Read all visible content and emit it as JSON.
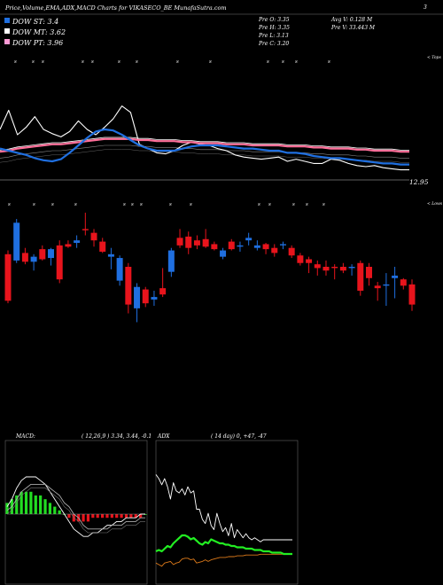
{
  "header": {
    "title": "Price,Volume,EMA,ADX,MACD Charts for VIKASECO_BE MunafaSutra.com",
    "top_right_value": "3",
    "price_label": "12.95",
    "tops_label": "< Tops",
    "lows_label": "< Lows"
  },
  "legend": {
    "items": [
      {
        "label": "DOW ST: 3.4",
        "color": "#1f6fe0"
      },
      {
        "label": "DOW MT: 3.62",
        "color": "#ffffff"
      },
      {
        "label": "DOW PT: 3.96",
        "color": "#ff9ad5"
      }
    ]
  },
  "ohlc": {
    "open": "Pre  O: 3.35",
    "high": "Pre  H: 3.35",
    "low": "Pre  L: 3.13",
    "close": "Pre  C: 3.20",
    "avg_vol": "Avg V: 0.128  M",
    "vol": "Pre   V: 33.443  M"
  },
  "macd_panel": {
    "title": "MACD:",
    "params": "( 12,26,9 ) 3.34,  3.44,  -0.1"
  },
  "adx_panel": {
    "title": "ADX",
    "params": "( 14  day) 0,  +47,  -47"
  },
  "colors": {
    "up": "#e8141c",
    "down": "#1f6fe0",
    "ema_short": "#1f6fe0",
    "ema_mid": "#ffffff",
    "ema_long": "#ff6f9a",
    "macd_hist": "#22dd22",
    "adx_di_plus": "#22ee22",
    "adx_di_minus": "#dd7a1a"
  },
  "chart_data": {
    "type": "candlestick",
    "candles": [
      {
        "o": 3.55,
        "h": 3.58,
        "l": 3.16,
        "c": 3.18
      },
      {
        "o": 3.5,
        "h": 3.83,
        "l": 3.48,
        "c": 3.8
      },
      {
        "o": 3.56,
        "h": 3.6,
        "l": 3.47,
        "c": 3.49
      },
      {
        "o": 3.49,
        "h": 3.55,
        "l": 3.42,
        "c": 3.53
      },
      {
        "o": 3.59,
        "h": 3.62,
        "l": 3.5,
        "c": 3.51
      },
      {
        "o": 3.52,
        "h": 3.6,
        "l": 3.46,
        "c": 3.59
      },
      {
        "o": 3.62,
        "h": 3.66,
        "l": 3.32,
        "c": 3.35
      },
      {
        "o": 3.63,
        "h": 3.66,
        "l": 3.6,
        "c": 3.61
      },
      {
        "o": 3.64,
        "h": 3.7,
        "l": 3.6,
        "c": 3.66
      },
      {
        "o": 3.75,
        "h": 3.88,
        "l": 3.7,
        "c": 3.74
      },
      {
        "o": 3.72,
        "h": 3.75,
        "l": 3.61,
        "c": 3.66
      },
      {
        "o": 3.65,
        "h": 3.68,
        "l": 3.56,
        "c": 3.57
      },
      {
        "o": 3.53,
        "h": 3.6,
        "l": 3.43,
        "c": 3.55
      },
      {
        "o": 3.34,
        "h": 3.54,
        "l": 3.3,
        "c": 3.52
      },
      {
        "o": 3.45,
        "h": 3.48,
        "l": 3.08,
        "c": 3.15
      },
      {
        "o": 3.12,
        "h": 3.32,
        "l": 3.01,
        "c": 3.29
      },
      {
        "o": 3.27,
        "h": 3.29,
        "l": 3.13,
        "c": 3.16
      },
      {
        "o": 3.19,
        "h": 3.26,
        "l": 3.14,
        "c": 3.21
      },
      {
        "o": 3.28,
        "h": 3.44,
        "l": 3.21,
        "c": 3.23
      },
      {
        "o": 3.41,
        "h": 3.6,
        "l": 3.37,
        "c": 3.58
      },
      {
        "o": 3.68,
        "h": 3.75,
        "l": 3.6,
        "c": 3.62
      },
      {
        "o": 3.69,
        "h": 3.73,
        "l": 3.55,
        "c": 3.6
      },
      {
        "o": 3.66,
        "h": 3.7,
        "l": 3.59,
        "c": 3.62
      },
      {
        "o": 3.67,
        "h": 3.75,
        "l": 3.6,
        "c": 3.61
      },
      {
        "o": 3.63,
        "h": 3.65,
        "l": 3.58,
        "c": 3.59
      },
      {
        "o": 3.53,
        "h": 3.6,
        "l": 3.51,
        "c": 3.58
      },
      {
        "o": 3.65,
        "h": 3.67,
        "l": 3.58,
        "c": 3.59
      },
      {
        "o": 3.61,
        "h": 3.65,
        "l": 3.57,
        "c": 3.62
      },
      {
        "o": 3.66,
        "h": 3.72,
        "l": 3.62,
        "c": 3.68
      },
      {
        "o": 3.6,
        "h": 3.66,
        "l": 3.58,
        "c": 3.62
      },
      {
        "o": 3.63,
        "h": 3.64,
        "l": 3.55,
        "c": 3.59
      },
      {
        "o": 3.6,
        "h": 3.63,
        "l": 3.53,
        "c": 3.56
      },
      {
        "o": 3.62,
        "h": 3.65,
        "l": 3.59,
        "c": 3.63
      },
      {
        "o": 3.6,
        "h": 3.62,
        "l": 3.52,
        "c": 3.54
      },
      {
        "o": 3.54,
        "h": 3.56,
        "l": 3.46,
        "c": 3.48
      },
      {
        "o": 3.51,
        "h": 3.53,
        "l": 3.4,
        "c": 3.48
      },
      {
        "o": 3.47,
        "h": 3.5,
        "l": 3.38,
        "c": 3.44
      },
      {
        "o": 3.45,
        "h": 3.5,
        "l": 3.38,
        "c": 3.42
      },
      {
        "o": 3.45,
        "h": 3.47,
        "l": 3.35,
        "c": 3.44
      },
      {
        "o": 3.45,
        "h": 3.48,
        "l": 3.4,
        "c": 3.42
      },
      {
        "o": 3.44,
        "h": 3.47,
        "l": 3.38,
        "c": 3.45
      },
      {
        "o": 3.48,
        "h": 3.5,
        "l": 3.22,
        "c": 3.26
      },
      {
        "o": 3.45,
        "h": 3.48,
        "l": 3.3,
        "c": 3.36
      },
      {
        "o": 3.3,
        "h": 3.33,
        "l": 3.18,
        "c": 3.28
      },
      {
        "o": 3.3,
        "h": 3.4,
        "l": 3.14,
        "c": 3.31
      },
      {
        "o": 3.36,
        "h": 3.45,
        "l": 3.2,
        "c": 3.38
      },
      {
        "o": 3.35,
        "h": 3.36,
        "l": 3.27,
        "c": 3.3
      },
      {
        "o": 3.31,
        "h": 3.35,
        "l": 3.1,
        "c": 3.15
      }
    ],
    "ema_short": [
      3.52,
      3.5,
      3.48,
      3.46,
      3.43,
      3.41,
      3.4,
      3.42,
      3.48,
      3.55,
      3.62,
      3.68,
      3.7,
      3.69,
      3.65,
      3.6,
      3.55,
      3.52,
      3.5,
      3.5,
      3.5,
      3.52,
      3.54,
      3.55,
      3.55,
      3.55,
      3.54,
      3.53,
      3.52,
      3.52,
      3.51,
      3.5,
      3.5,
      3.48,
      3.48,
      3.47,
      3.45,
      3.44,
      3.43,
      3.43,
      3.42,
      3.41,
      3.4,
      3.39,
      3.38,
      3.38,
      3.37,
      3.37
    ],
    "ema_mid": [
      3.7,
      3.88,
      3.65,
      3.72,
      3.82,
      3.7,
      3.66,
      3.63,
      3.68,
      3.78,
      3.7,
      3.65,
      3.72,
      3.8,
      3.92,
      3.86,
      3.56,
      3.52,
      3.48,
      3.47,
      3.5,
      3.55,
      3.58,
      3.56,
      3.55,
      3.52,
      3.5,
      3.46,
      3.44,
      3.43,
      3.42,
      3.43,
      3.44,
      3.4,
      3.42,
      3.4,
      3.38,
      3.38,
      3.42,
      3.41,
      3.38,
      3.36,
      3.35,
      3.36,
      3.34,
      3.33,
      3.32,
      3.32
    ],
    "ema_long": [
      3.49,
      3.5,
      3.52,
      3.53,
      3.54,
      3.55,
      3.56,
      3.56,
      3.57,
      3.58,
      3.59,
      3.6,
      3.61,
      3.61,
      3.61,
      3.61,
      3.6,
      3.6,
      3.59,
      3.59,
      3.59,
      3.58,
      3.58,
      3.57,
      3.57,
      3.57,
      3.56,
      3.56,
      3.56,
      3.55,
      3.55,
      3.55,
      3.55,
      3.54,
      3.54,
      3.54,
      3.53,
      3.53,
      3.52,
      3.52,
      3.52,
      3.51,
      3.51,
      3.5,
      3.5,
      3.5,
      3.49,
      3.49
    ],
    "macd": {
      "macd_line": [
        0.02,
        0.04,
        0.07,
        0.09,
        0.1,
        0.1,
        0.1,
        0.09,
        0.08,
        0.06,
        0.04,
        0.02,
        0.0,
        -0.02,
        -0.04,
        -0.05,
        -0.06,
        -0.06,
        -0.05,
        -0.05,
        -0.04,
        -0.03,
        -0.03,
        -0.02,
        -0.02,
        -0.01,
        -0.01,
        -0.01,
        0.0,
        0.0
      ],
      "signal_line": [
        0.01,
        0.02,
        0.04,
        0.06,
        0.07,
        0.08,
        0.08,
        0.08,
        0.08,
        0.07,
        0.06,
        0.05,
        0.03,
        0.02,
        0.0,
        -0.01,
        -0.03,
        -0.04,
        -0.04,
        -0.04,
        -0.04,
        -0.04,
        -0.03,
        -0.03,
        -0.03,
        -0.02,
        -0.02,
        -0.02,
        -0.01,
        -0.01
      ],
      "histogram": [
        0.03,
        0.04,
        0.05,
        0.06,
        0.06,
        0.06,
        0.05,
        0.05,
        0.04,
        0.03,
        0.02,
        0.01,
        0.0,
        -0.01,
        -0.02,
        -0.02,
        -0.02,
        -0.02,
        -0.01,
        -0.01,
        -0.01,
        -0.01,
        -0.01,
        -0.01,
        -0.01,
        -0.01,
        -0.01,
        -0.01,
        -0.01,
        0.0
      ]
    },
    "adx": {
      "adx_line": [
        52,
        50,
        47,
        50,
        46,
        40,
        48,
        44,
        43,
        45,
        42,
        46,
        43,
        44,
        35,
        35,
        30,
        28,
        33,
        27,
        25,
        33,
        28,
        24,
        26,
        22,
        28,
        21,
        25,
        23,
        21,
        23,
        21,
        20,
        21,
        20,
        19,
        20,
        20,
        20,
        20,
        20,
        20,
        20,
        20,
        20,
        20,
        20
      ],
      "di_plus": [
        12,
        13,
        12,
        14,
        16,
        15,
        18,
        20,
        22,
        24,
        24,
        23,
        21,
        22,
        20,
        18,
        17,
        19,
        18,
        21,
        20,
        19,
        18,
        18,
        17,
        17,
        16,
        16,
        15,
        15,
        15,
        14,
        14,
        14,
        13,
        13,
        13,
        12,
        12,
        12,
        11,
        11,
        11,
        11,
        10,
        10,
        10,
        10
      ],
      "di_minus": [
        38,
        40,
        42,
        38,
        37,
        36,
        40,
        38,
        37,
        33,
        32,
        32,
        34,
        33,
        38,
        37,
        36,
        34,
        36,
        34,
        33,
        32,
        31,
        31,
        31,
        30,
        30,
        30,
        29,
        29,
        29,
        28,
        28,
        28,
        28,
        28,
        27,
        27,
        27,
        27,
        27,
        27,
        27,
        27,
        27,
        27,
        27,
        27
      ]
    }
  }
}
